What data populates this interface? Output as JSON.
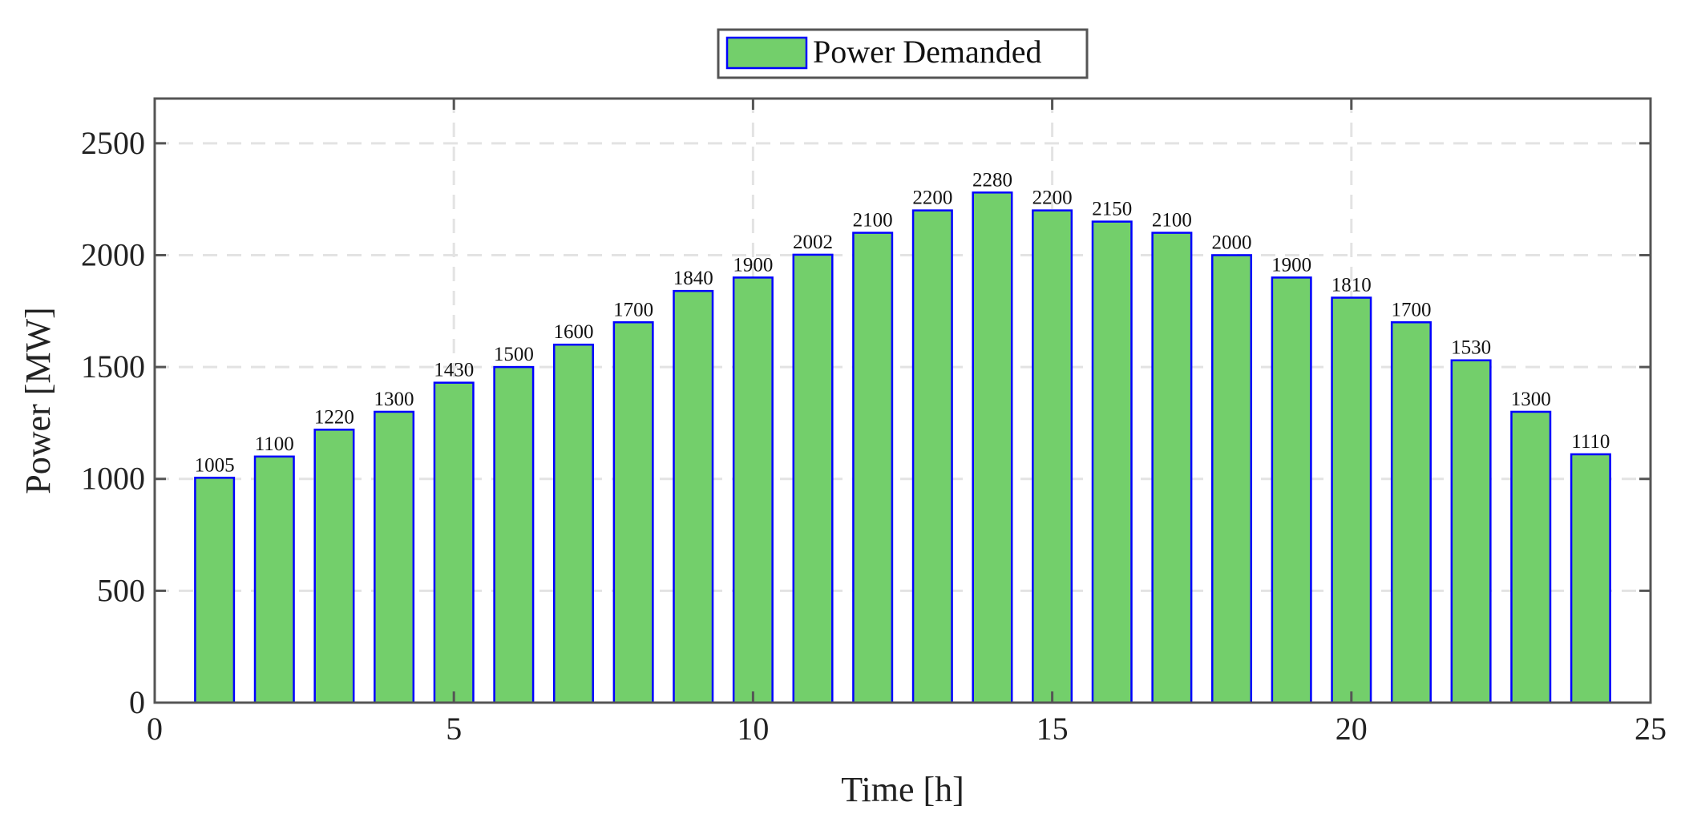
{
  "chart_data": {
    "type": "bar",
    "title": "",
    "xlabel": "Time [h]",
    "ylabel": "Power [MW]",
    "xlim": [
      0,
      25
    ],
    "ylim": [
      0,
      2700
    ],
    "xticks": [
      0,
      5,
      10,
      15,
      20,
      25
    ],
    "yticks": [
      0,
      500,
      1000,
      1500,
      2000,
      2500
    ],
    "grid": true,
    "legend_position": "top-center-outside",
    "categories": [
      1,
      2,
      3,
      4,
      5,
      6,
      7,
      8,
      9,
      10,
      11,
      12,
      13,
      14,
      15,
      16,
      17,
      18,
      19,
      20,
      21,
      22,
      23,
      24
    ],
    "series": [
      {
        "name": "Power Demanded",
        "color": "#73CF6B",
        "edge_color": "#0000FF",
        "values": [
          1005,
          1100,
          1220,
          1300,
          1430,
          1500,
          1600,
          1700,
          1840,
          1900,
          2002,
          2100,
          2200,
          2280,
          2200,
          2150,
          2100,
          2000,
          1900,
          1810,
          1700,
          1530,
          1300,
          1110
        ]
      }
    ],
    "data_labels": true,
    "bar_width": 0.65
  },
  "legend": {
    "label": "Power Demanded"
  },
  "axes": {
    "xlabel": "Time [h]",
    "ylabel": "Power [MW]"
  },
  "colors": {
    "bar_fill": "#73CF6B",
    "bar_edge": "#0000FF",
    "axis": "#555555",
    "grid": "#E3E3E3"
  }
}
